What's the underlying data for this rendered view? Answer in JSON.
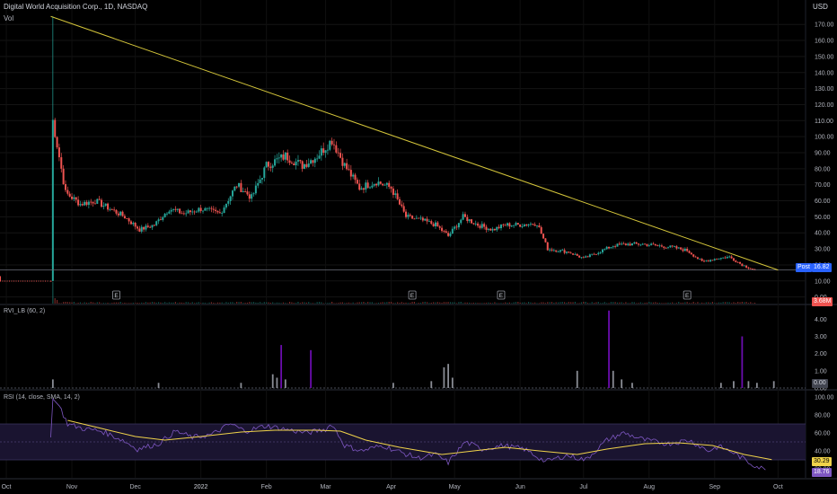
{
  "header": {
    "symbol": "Digital World Acquisition Corp., 1D, NASDAQ",
    "vol_label": "Vol",
    "currency": "USD"
  },
  "colors": {
    "background": "#000000",
    "up": "#26a69a",
    "down": "#ef5350",
    "trendline": "#d4c53a",
    "rvi_high": "#6a0dad",
    "rsi_line": "#7e57c2",
    "rsi_sma": "#f0d34a",
    "post_badge": "#2962ff"
  },
  "chart_data": [
    {
      "type": "candlestick",
      "name": "Price",
      "y_axis_ticks": [
        0,
        10,
        20,
        30,
        40,
        50,
        60,
        70,
        80,
        90,
        100,
        110,
        120,
        130,
        140,
        150,
        160,
        170
      ],
      "y_axis_tick_labels": [
        "0.00",
        "10.00",
        "20.00",
        "30.00",
        "40.00",
        "50.00",
        "60.00",
        "70.00",
        "80.00",
        "90.00",
        "100.00",
        "110.00",
        "120.00",
        "130.00",
        "140.00",
        "150.00",
        "160.00",
        "170.00"
      ],
      "ylim": [
        -3,
        183
      ],
      "x_tick_labels": [
        "Oct",
        "Nov",
        "Dec",
        "2022",
        "Feb",
        "Mar",
        "Apr",
        "May",
        "Jun",
        "Jul",
        "Aug",
        "Sep",
        "Oct"
      ],
      "x_tick_positions": [
        "2021-10-01",
        "2021-11-01",
        "2021-12-01",
        "2022-01-01",
        "2022-02-01",
        "2022-03-01",
        "2022-04-01",
        "2022-05-01",
        "2022-06-01",
        "2022-07-01",
        "2022-08-01",
        "2022-09-01",
        "2022-10-01"
      ],
      "xlim": [
        "2021-09-28",
        "2022-10-14"
      ],
      "pre_listing_line": {
        "start": "2021-09-28",
        "end": "2021-10-21",
        "value": 9.9
      },
      "trendline": {
        "from": {
          "date": "2021-10-22",
          "price": 175
        },
        "to": {
          "date": "2022-10-01",
          "price": 16.8
        }
      },
      "horizontal_line": 16.82,
      "post_label": "Post",
      "post_value": "16.82",
      "volume_label": "3.68M",
      "earnings_markers": [
        {
          "date": "2021-11-22",
          "label": "E"
        },
        {
          "date": "2022-04-11",
          "label": "E"
        },
        {
          "date": "2022-05-23",
          "label": "E"
        },
        {
          "date": "2022-08-19",
          "label": "E"
        }
      ],
      "anchors": [
        [
          "2021-10-22",
          10
        ],
        [
          "2021-10-23",
          110
        ],
        [
          "2021-10-25",
          95
        ],
        [
          "2021-10-27",
          80
        ],
        [
          "2021-10-29",
          65
        ],
        [
          "2021-11-05",
          58
        ],
        [
          "2021-11-12",
          60
        ],
        [
          "2021-11-19",
          55
        ],
        [
          "2021-11-26",
          50
        ],
        [
          "2021-12-03",
          42
        ],
        [
          "2021-12-10",
          45
        ],
        [
          "2021-12-17",
          55
        ],
        [
          "2021-12-24",
          52
        ],
        [
          "2022-01-01",
          55
        ],
        [
          "2022-01-10",
          52
        ],
        [
          "2022-01-18",
          70
        ],
        [
          "2022-01-25",
          62
        ],
        [
          "2022-02-01",
          82
        ],
        [
          "2022-02-10",
          88
        ],
        [
          "2022-02-18",
          82
        ],
        [
          "2022-02-25",
          88
        ],
        [
          "2022-03-04",
          98
        ],
        [
          "2022-03-10",
          82
        ],
        [
          "2022-03-17",
          68
        ],
        [
          "2022-03-25",
          72
        ],
        [
          "2022-04-01",
          68
        ],
        [
          "2022-04-08",
          50
        ],
        [
          "2022-04-15",
          48
        ],
        [
          "2022-04-22",
          45
        ],
        [
          "2022-04-28",
          38
        ],
        [
          "2022-05-05",
          50
        ],
        [
          "2022-05-12",
          45
        ],
        [
          "2022-05-19",
          42
        ],
        [
          "2022-05-25",
          45
        ],
        [
          "2022-06-01",
          45
        ],
        [
          "2022-06-09",
          46
        ],
        [
          "2022-06-14",
          30
        ],
        [
          "2022-06-24",
          28
        ],
        [
          "2022-07-01",
          24
        ],
        [
          "2022-07-08",
          28
        ],
        [
          "2022-07-15",
          32
        ],
        [
          "2022-07-22",
          33
        ],
        [
          "2022-07-29",
          33
        ],
        [
          "2022-08-05",
          32
        ],
        [
          "2022-08-12",
          31
        ],
        [
          "2022-08-19",
          29
        ],
        [
          "2022-08-26",
          22
        ],
        [
          "2022-09-02",
          24
        ],
        [
          "2022-09-08",
          25
        ],
        [
          "2022-09-14",
          20
        ],
        [
          "2022-09-20",
          16.8
        ]
      ]
    },
    {
      "type": "bar",
      "name": "RVI_LB (60, 2)",
      "y_axis_ticks": [
        0,
        1,
        2,
        3,
        4
      ],
      "y_axis_tick_labels": [
        "0.00",
        "1.00",
        "2.00",
        "3.00",
        "4.00"
      ],
      "ylim": [
        0,
        4.8
      ],
      "last_value": "0.00",
      "spikes": [
        {
          "date": "2021-10-23",
          "value": 0.5
        },
        {
          "date": "2021-12-12",
          "value": 0.3
        },
        {
          "date": "2022-01-20",
          "value": 0.3
        },
        {
          "date": "2022-02-04",
          "value": 0.8
        },
        {
          "date": "2022-02-06",
          "value": 0.6
        },
        {
          "date": "2022-02-08",
          "value": 2.5,
          "high": true
        },
        {
          "date": "2022-02-10",
          "value": 0.5
        },
        {
          "date": "2022-02-22",
          "value": 2.2,
          "high": true
        },
        {
          "date": "2022-04-02",
          "value": 0.3
        },
        {
          "date": "2022-04-20",
          "value": 0.4
        },
        {
          "date": "2022-04-26",
          "value": 1.2
        },
        {
          "date": "2022-04-28",
          "value": 1.4
        },
        {
          "date": "2022-04-30",
          "value": 0.6
        },
        {
          "date": "2022-06-28",
          "value": 1.0
        },
        {
          "date": "2022-07-13",
          "value": 4.5,
          "high": true
        },
        {
          "date": "2022-07-15",
          "value": 1.0
        },
        {
          "date": "2022-07-19",
          "value": 0.5
        },
        {
          "date": "2022-07-24",
          "value": 0.3
        },
        {
          "date": "2022-09-04",
          "value": 0.3
        },
        {
          "date": "2022-09-10",
          "value": 0.4
        },
        {
          "date": "2022-09-14",
          "value": 3.0,
          "high": true
        },
        {
          "date": "2022-09-17",
          "value": 0.4
        },
        {
          "date": "2022-09-21",
          "value": 0.3
        },
        {
          "date": "2022-09-29",
          "value": 0.4
        }
      ]
    },
    {
      "type": "line",
      "name": "RSI (14, close, SMA, 14, 2)",
      "y_axis_ticks": [
        20,
        40,
        60,
        80,
        100
      ],
      "y_axis_tick_labels": [
        "20.00",
        "40.00",
        "60.00",
        "80.00",
        "100.00"
      ],
      "ylim": [
        10,
        106
      ],
      "band": [
        30,
        70
      ],
      "midline": 50,
      "sma_value": "30.29",
      "rsi_value": "18.76",
      "rsi": [
        [
          "2021-10-22",
          55
        ],
        [
          "2021-10-23",
          98
        ],
        [
          "2021-10-26",
          90
        ],
        [
          "2021-10-30",
          70
        ],
        [
          "2021-11-06",
          65
        ],
        [
          "2021-11-15",
          62
        ],
        [
          "2021-11-25",
          52
        ],
        [
          "2021-12-02",
          42
        ],
        [
          "2021-12-12",
          48
        ],
        [
          "2021-12-20",
          62
        ],
        [
          "2021-12-28",
          55
        ],
        [
          "2022-01-06",
          58
        ],
        [
          "2022-01-15",
          70
        ],
        [
          "2022-01-22",
          62
        ],
        [
          "2022-02-01",
          68
        ],
        [
          "2022-02-10",
          64
        ],
        [
          "2022-02-20",
          60
        ],
        [
          "2022-03-01",
          64
        ],
        [
          "2022-03-04",
          70
        ],
        [
          "2022-03-10",
          46
        ],
        [
          "2022-03-18",
          40
        ],
        [
          "2022-03-28",
          46
        ],
        [
          "2022-04-06",
          38
        ],
        [
          "2022-04-14",
          32
        ],
        [
          "2022-04-22",
          36
        ],
        [
          "2022-04-28",
          27
        ],
        [
          "2022-05-06",
          50
        ],
        [
          "2022-05-14",
          42
        ],
        [
          "2022-05-24",
          46
        ],
        [
          "2022-06-03",
          42
        ],
        [
          "2022-06-13",
          28
        ],
        [
          "2022-06-23",
          35
        ],
        [
          "2022-07-02",
          30
        ],
        [
          "2022-07-12",
          52
        ],
        [
          "2022-07-20",
          60
        ],
        [
          "2022-07-30",
          52
        ],
        [
          "2022-08-10",
          48
        ],
        [
          "2022-08-20",
          52
        ],
        [
          "2022-08-29",
          40
        ],
        [
          "2022-09-03",
          45
        ],
        [
          "2022-09-10",
          38
        ],
        [
          "2022-09-18",
          26
        ],
        [
          "2022-09-25",
          18.76
        ]
      ],
      "sma": [
        [
          "2021-10-30",
          74
        ],
        [
          "2021-11-15",
          65
        ],
        [
          "2021-12-01",
          56
        ],
        [
          "2021-12-15",
          52
        ],
        [
          "2022-01-01",
          56
        ],
        [
          "2022-01-20",
          61
        ],
        [
          "2022-02-05",
          63
        ],
        [
          "2022-02-25",
          63
        ],
        [
          "2022-03-08",
          62
        ],
        [
          "2022-03-20",
          52
        ],
        [
          "2022-04-05",
          44
        ],
        [
          "2022-04-25",
          36
        ],
        [
          "2022-05-10",
          40
        ],
        [
          "2022-05-25",
          44
        ],
        [
          "2022-06-10",
          40
        ],
        [
          "2022-06-28",
          36
        ],
        [
          "2022-07-12",
          42
        ],
        [
          "2022-07-30",
          48
        ],
        [
          "2022-08-15",
          49
        ],
        [
          "2022-08-31",
          46
        ],
        [
          "2022-09-15",
          36
        ],
        [
          "2022-09-28",
          30.29
        ]
      ]
    }
  ]
}
